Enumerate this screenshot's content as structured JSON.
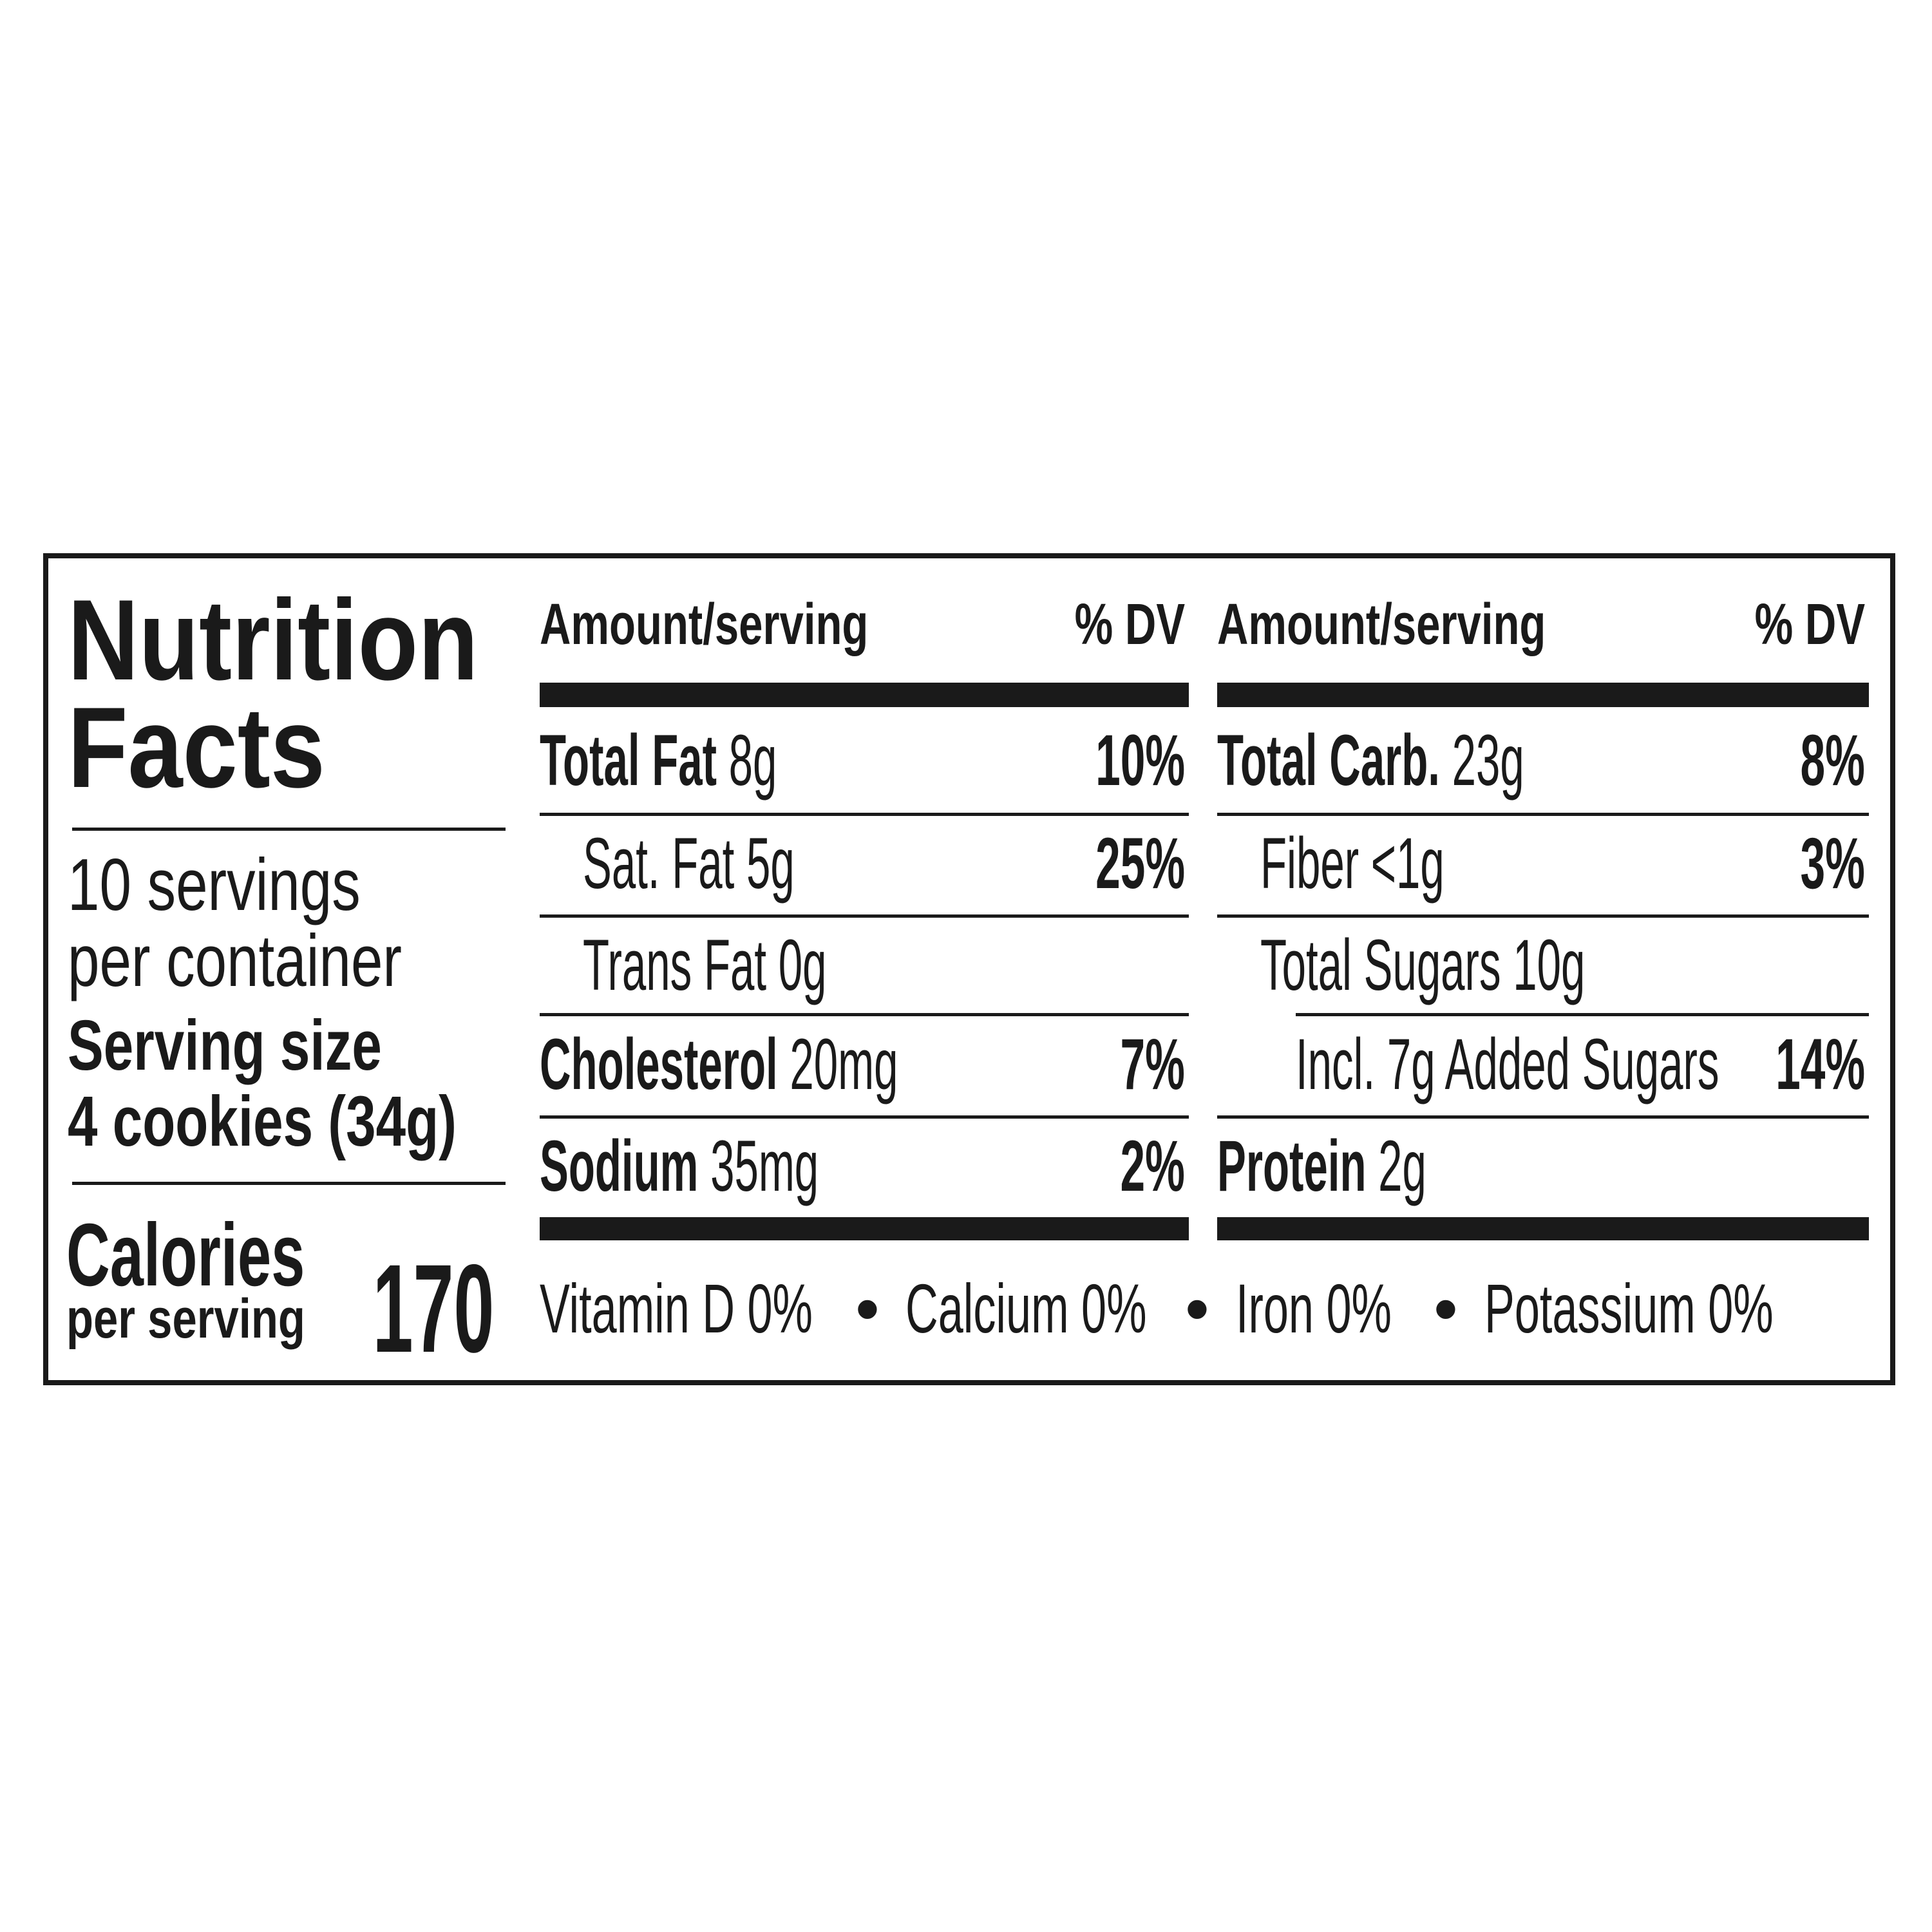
{
  "label": {
    "title_line1": "Nutrition",
    "title_line2": "Facts",
    "servings_line1": "10 servings",
    "servings_line2": "per container",
    "serving_size_label": "Serving size",
    "serving_size_value": "4 cookies (34g)",
    "calories_label": "Calories",
    "calories_sub": "per serving",
    "calories_value": "170"
  },
  "columns": [
    {
      "header_amount": "Amount/serving",
      "header_dv": "% DV",
      "rows": [
        {
          "name": "Total Fat",
          "amount": "8g",
          "dv": "10%",
          "bold": true,
          "indent": 0
        },
        {
          "name": "Sat. Fat",
          "amount": "5g",
          "dv": "25%",
          "bold": false,
          "indent": 1
        },
        {
          "name": "Trans Fat",
          "amount": "0g",
          "dv": "",
          "bold": false,
          "indent": 1
        },
        {
          "name": "Cholesterol",
          "amount": "20mg",
          "dv": "7%",
          "bold": true,
          "indent": 0
        },
        {
          "name": "Sodium",
          "amount": "35mg",
          "dv": "2%",
          "bold": true,
          "indent": 0
        }
      ]
    },
    {
      "header_amount": "Amount/serving",
      "header_dv": "% DV",
      "rows": [
        {
          "name": "Total Carb.",
          "amount": "23g",
          "dv": "8%",
          "bold": true,
          "indent": 0
        },
        {
          "name": "Fiber",
          "amount": "<1g",
          "dv": "3%",
          "bold": false,
          "indent": 1
        },
        {
          "name": "Total Sugars",
          "amount": "10g",
          "dv": "",
          "bold": false,
          "indent": 1
        },
        {
          "name": "Incl. 7g Added Sugars",
          "amount": "",
          "dv": "14%",
          "bold": false,
          "indent": 2
        },
        {
          "name": "Protein",
          "amount": "2g",
          "dv": "",
          "bold": true,
          "indent": 0
        }
      ]
    }
  ],
  "vitamins": [
    "Vitamin D 0%",
    "Calcium 0%",
    "Iron 0%",
    "Potassium 0%"
  ],
  "separator": "•"
}
